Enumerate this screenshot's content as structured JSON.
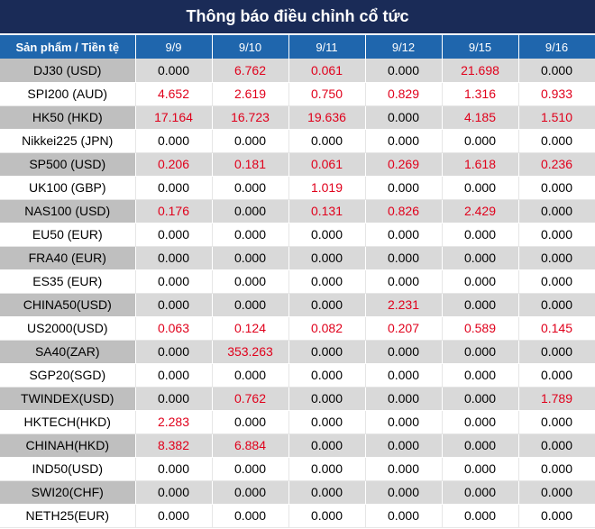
{
  "title": "Thông báo điều chỉnh cổ tức",
  "header": {
    "product_label": "Sản phẩm / Tiền tệ",
    "dates": [
      "9/9",
      "9/10",
      "9/11",
      "9/12",
      "9/15",
      "9/16"
    ]
  },
  "colors": {
    "title_bg": "#1a2b57",
    "header_bg": "#1f66ad",
    "highlight": "#e0001b"
  },
  "rows": [
    {
      "product": "DJ30 (USD)",
      "values": [
        "0.000",
        "6.762",
        "0.061",
        "0.000",
        "21.698",
        "0.000"
      ]
    },
    {
      "product": "SPI200 (AUD)",
      "values": [
        "4.652",
        "2.619",
        "0.750",
        "0.829",
        "1.316",
        "0.933"
      ]
    },
    {
      "product": "HK50 (HKD)",
      "values": [
        "17.164",
        "16.723",
        "19.636",
        "0.000",
        "4.185",
        "1.510"
      ]
    },
    {
      "product": "Nikkei225 (JPN)",
      "values": [
        "0.000",
        "0.000",
        "0.000",
        "0.000",
        "0.000",
        "0.000"
      ]
    },
    {
      "product": "SP500 (USD)",
      "values": [
        "0.206",
        "0.181",
        "0.061",
        "0.269",
        "1.618",
        "0.236"
      ]
    },
    {
      "product": "UK100 (GBP)",
      "values": [
        "0.000",
        "0.000",
        "1.019",
        "0.000",
        "0.000",
        "0.000"
      ]
    },
    {
      "product": "NAS100 (USD)",
      "values": [
        "0.176",
        "0.000",
        "0.131",
        "0.826",
        "2.429",
        "0.000"
      ]
    },
    {
      "product": "EU50 (EUR)",
      "values": [
        "0.000",
        "0.000",
        "0.000",
        "0.000",
        "0.000",
        "0.000"
      ]
    },
    {
      "product": "FRA40 (EUR)",
      "values": [
        "0.000",
        "0.000",
        "0.000",
        "0.000",
        "0.000",
        "0.000"
      ]
    },
    {
      "product": "ES35 (EUR)",
      "values": [
        "0.000",
        "0.000",
        "0.000",
        "0.000",
        "0.000",
        "0.000"
      ]
    },
    {
      "product": "CHINA50(USD)",
      "values": [
        "0.000",
        "0.000",
        "0.000",
        "2.231",
        "0.000",
        "0.000"
      ]
    },
    {
      "product": "US2000(USD)",
      "values": [
        "0.063",
        "0.124",
        "0.082",
        "0.207",
        "0.589",
        "0.145"
      ]
    },
    {
      "product": "SA40(ZAR)",
      "values": [
        "0.000",
        "353.263",
        "0.000",
        "0.000",
        "0.000",
        "0.000"
      ]
    },
    {
      "product": "SGP20(SGD)",
      "values": [
        "0.000",
        "0.000",
        "0.000",
        "0.000",
        "0.000",
        "0.000"
      ]
    },
    {
      "product": "TWINDEX(USD)",
      "values": [
        "0.000",
        "0.762",
        "0.000",
        "0.000",
        "0.000",
        "1.789"
      ]
    },
    {
      "product": "HKTECH(HKD)",
      "values": [
        "2.283",
        "0.000",
        "0.000",
        "0.000",
        "0.000",
        "0.000"
      ]
    },
    {
      "product": "CHINAH(HKD)",
      "values": [
        "8.382",
        "6.884",
        "0.000",
        "0.000",
        "0.000",
        "0.000"
      ]
    },
    {
      "product": "IND50(USD)",
      "values": [
        "0.000",
        "0.000",
        "0.000",
        "0.000",
        "0.000",
        "0.000"
      ]
    },
    {
      "product": "SWI20(CHF)",
      "values": [
        "0.000",
        "0.000",
        "0.000",
        "0.000",
        "0.000",
        "0.000"
      ]
    },
    {
      "product": "NETH25(EUR)",
      "values": [
        "0.000",
        "0.000",
        "0.000",
        "0.000",
        "0.000",
        "0.000"
      ]
    }
  ]
}
